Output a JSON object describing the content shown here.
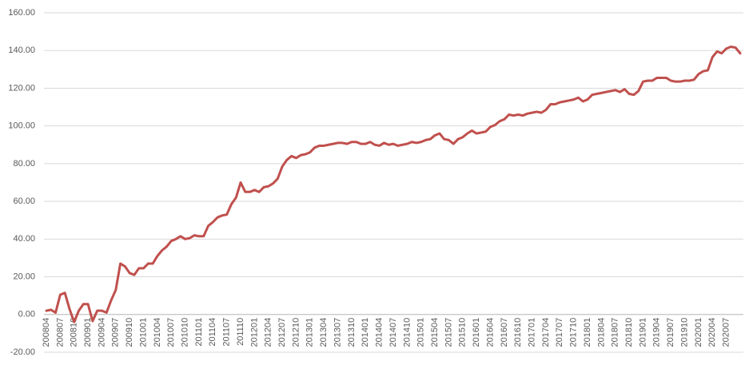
{
  "chart_data": {
    "type": "line",
    "color": "#c0504d",
    "grid": true,
    "categories": [
      "200804",
      null,
      null,
      "200807",
      null,
      null,
      "200810",
      null,
      null,
      "200901",
      null,
      null,
      "200904",
      null,
      null,
      "200907",
      null,
      null,
      "200910",
      null,
      null,
      "201001",
      null,
      null,
      "201004",
      null,
      null,
      "201007",
      null,
      null,
      "201010",
      null,
      null,
      "201101",
      null,
      null,
      "201104",
      null,
      null,
      "201107",
      null,
      null,
      "201110",
      null,
      null,
      "201201",
      null,
      null,
      "201204",
      null,
      null,
      "201207",
      null,
      null,
      "201210",
      null,
      null,
      "201301",
      null,
      null,
      "201304",
      null,
      null,
      "201307",
      null,
      null,
      "201310",
      null,
      null,
      "201401",
      null,
      null,
      "201404",
      null,
      null,
      "201407",
      null,
      null,
      "201410",
      null,
      null,
      "201501",
      null,
      null,
      "201504",
      null,
      null,
      "201507",
      null,
      null,
      "201510",
      null,
      null,
      "201601",
      null,
      null,
      "201604",
      null,
      null,
      "201607",
      null,
      null,
      "201610",
      null,
      null,
      "201701",
      null,
      null,
      "201704",
      null,
      null,
      "201707",
      null,
      null,
      "201710",
      null,
      null,
      "201801",
      null,
      null,
      "201804",
      null,
      null,
      "201807",
      null,
      null,
      "201810",
      null,
      null,
      "201901",
      null,
      null,
      "201904",
      null,
      null,
      "201907",
      null,
      null,
      "201910",
      null,
      null,
      "202001",
      null,
      null,
      "202004",
      null,
      null,
      "202007",
      null,
      null,
      null
    ],
    "values": [
      2,
      2.5,
      1,
      10.5,
      11.5,
      3,
      -4,
      2,
      5.5,
      5.5,
      -3.5,
      2,
      2,
      1,
      7.5,
      13,
      27,
      25.5,
      22,
      21,
      24.5,
      24.5,
      27,
      27,
      31,
      34,
      36,
      39,
      40,
      41.5,
      40,
      40.5,
      42,
      41.5,
      41.5,
      47,
      49,
      51.5,
      52.5,
      53,
      58.5,
      62,
      70,
      65,
      65,
      66,
      65,
      67.5,
      68,
      69.5,
      72,
      78.5,
      82,
      84,
      83,
      84.5,
      85,
      86,
      88.5,
      89.5,
      89.5,
      90,
      90.5,
      91,
      91,
      90.5,
      91.5,
      91.5,
      90.5,
      90.5,
      91.5,
      90,
      89.5,
      91,
      90,
      90.5,
      89.5,
      90,
      90.5,
      91.5,
      91,
      91.5,
      92.5,
      93,
      95,
      96,
      93,
      92.5,
      90.5,
      93,
      94,
      96,
      97.5,
      96,
      96.5,
      97,
      99.5,
      100.5,
      102.5,
      103.5,
      106,
      105.5,
      106,
      105.5,
      106.5,
      107,
      107.5,
      107,
      108.5,
      111.5,
      111.5,
      112.5,
      113,
      113.5,
      114,
      115,
      113,
      114,
      116.5,
      117,
      117.5,
      118,
      118.5,
      119,
      118,
      119.5,
      117,
      116.5,
      118.5,
      123.5,
      124,
      124,
      125.5,
      125.5,
      125.5,
      124,
      123.5,
      123.5,
      124,
      124,
      124.5,
      127.5,
      129,
      129.5,
      136.5,
      139.5,
      138.5,
      141,
      142,
      141.5,
      138.5
    ],
    "ylim": [
      -20,
      160
    ],
    "yticks": [
      {
        "value": -20,
        "label": "-20.00"
      },
      {
        "value": 0,
        "label": "0.00"
      },
      {
        "value": 20,
        "label": "20.00"
      },
      {
        "value": 40,
        "label": "40.00"
      },
      {
        "value": 60,
        "label": "60.00"
      },
      {
        "value": 80,
        "label": "80.00"
      },
      {
        "value": 100,
        "label": "100.00"
      },
      {
        "value": 120,
        "label": "120.00"
      },
      {
        "value": 140,
        "label": "140.00"
      },
      {
        "value": 160,
        "label": "160.00"
      }
    ]
  }
}
